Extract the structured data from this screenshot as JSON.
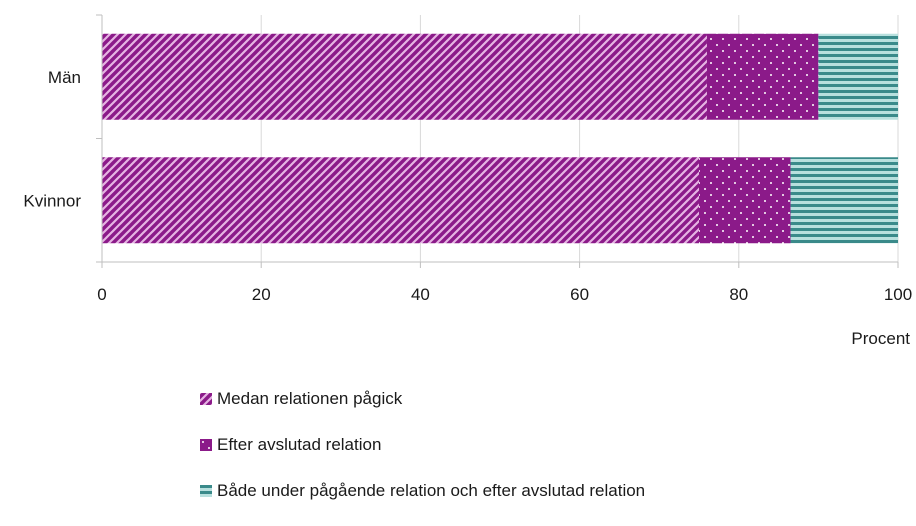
{
  "chart_data": {
    "type": "bar",
    "orientation": "horizontal",
    "stacked": true,
    "categories": [
      "Män",
      "Kvinnor"
    ],
    "series": [
      {
        "name": "Medan relationen pågick",
        "values": [
          76,
          75
        ],
        "color": "#8b1a89",
        "pattern": "diagonal-stripes"
      },
      {
        "name": "Efter avslutad relation",
        "values": [
          14,
          11.5
        ],
        "color": "#8b1a89",
        "pattern": "dots"
      },
      {
        "name": "Både under pågående relation och efter avslutad relation",
        "values": [
          10,
          13.5
        ],
        "color": "#3a8a8a",
        "pattern": "horizontal-stripes"
      }
    ],
    "xlim": [
      0,
      100
    ],
    "xticks": [
      "0",
      "20",
      "40",
      "60",
      "80",
      "100"
    ],
    "xlabel": "Procent",
    "ylabel": "",
    "title": "",
    "grid": true,
    "legend_position": "bottom"
  }
}
